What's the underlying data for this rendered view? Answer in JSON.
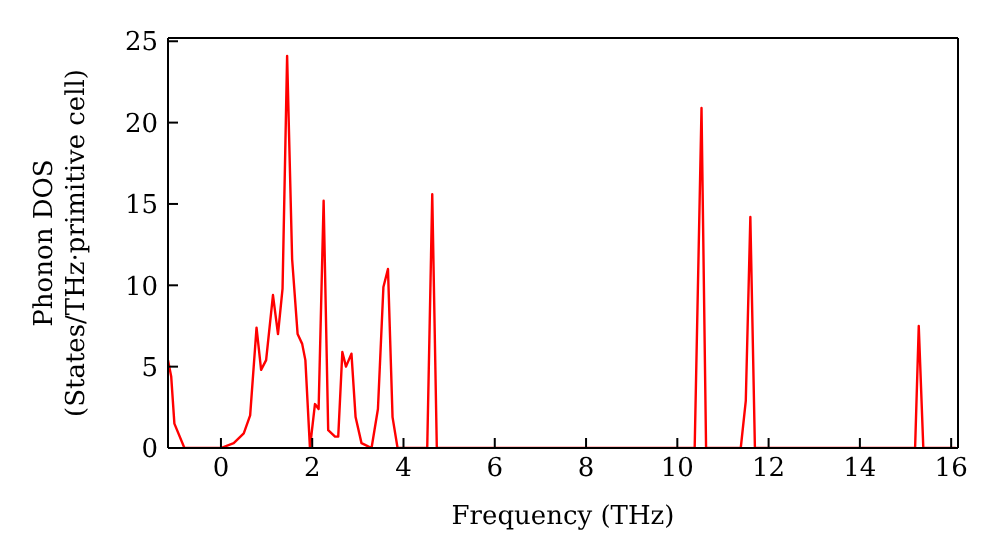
{
  "chart_data": {
    "type": "line",
    "xlabel": "Frequency (THz)",
    "ylabel": "Phonon DOS\n(States/THz·primitive cell)",
    "x": [
      -1.16,
      -1.09,
      -1.02,
      -0.8,
      0.0,
      0.28,
      0.5,
      0.64,
      0.78,
      0.88,
      0.99,
      1.14,
      1.25,
      1.35,
      1.45,
      1.56,
      1.68,
      1.78,
      1.85,
      1.95,
      2.06,
      2.14,
      2.25,
      2.35,
      2.5,
      2.57,
      2.66,
      2.74,
      2.86,
      2.95,
      3.08,
      3.3,
      3.44,
      3.56,
      3.66,
      3.76,
      3.87,
      4.52,
      4.63,
      4.73,
      10.38,
      10.53,
      10.63,
      11.39,
      11.5,
      11.6,
      11.7,
      15.21,
      15.29,
      15.39,
      16.1
    ],
    "series": [
      {
        "color": "#ff0000",
        "values": [
          5.4,
          4.4,
          1.5,
          0,
          0,
          0.3,
          0.9,
          2,
          7.4,
          4.8,
          5.4,
          9.4,
          7.0,
          9.8,
          24.1,
          11.6,
          7.0,
          6.4,
          5.4,
          0,
          2.7,
          2.4,
          15.2,
          1.1,
          0.7,
          0.7,
          5.9,
          5.0,
          5.8,
          1.9,
          0.3,
          0,
          2.4,
          9.9,
          11.0,
          1.9,
          0,
          0,
          15.6,
          0,
          0,
          20.9,
          0,
          0,
          2.9,
          14.2,
          0,
          0,
          7.5,
          0,
          0
        ]
      }
    ],
    "xlim": [
      -1.16,
      16.15
    ],
    "xticks": [
      0,
      2,
      4,
      6,
      8,
      10,
      12,
      14,
      16
    ],
    "ylim": [
      0,
      25.2
    ],
    "yticks": [
      0,
      5,
      10,
      15,
      20,
      25
    ],
    "grid": false,
    "legend": false,
    "marker": "none",
    "line_style": "solid"
  }
}
